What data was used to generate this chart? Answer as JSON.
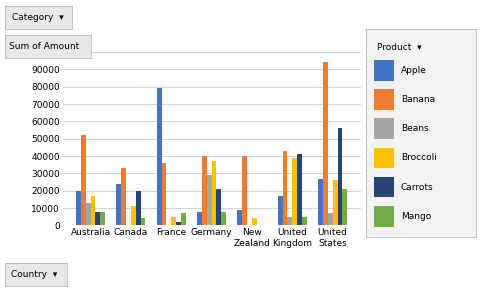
{
  "countries": [
    "Australia",
    "Canada",
    "France",
    "Germany",
    "New\nZealand",
    "United\nKingdom",
    "United\nStates"
  ],
  "products": [
    "Apple",
    "Banana",
    "Beans",
    "Broccoli",
    "Carrots",
    "Mango"
  ],
  "bar_colors": {
    "Apple": "#4472C4",
    "Banana": "#ED7D31",
    "Beans": "#A5A5A5",
    "Broccoli": "#FFC000",
    "Carrots": "#264478",
    "Mango": "#70AD47"
  },
  "data": {
    "Australia": {
      "Apple": 20000,
      "Banana": 52000,
      "Beans": 13000,
      "Broccoli": 17000,
      "Carrots": 8000,
      "Mango": 8000
    },
    "Canada": {
      "Apple": 24000,
      "Banana": 33000,
      "Beans": 0,
      "Broccoli": 11000,
      "Carrots": 20000,
      "Mango": 4000
    },
    "France": {
      "Apple": 79000,
      "Banana": 36000,
      "Beans": 0,
      "Broccoli": 5000,
      "Carrots": 2000,
      "Mango": 7000
    },
    "Germany": {
      "Apple": 8000,
      "Banana": 40000,
      "Beans": 29000,
      "Broccoli": 37000,
      "Carrots": 21000,
      "Mango": 8000
    },
    "New\nZealand": {
      "Apple": 9000,
      "Banana": 40000,
      "Beans": 0,
      "Broccoli": 4000,
      "Carrots": 0,
      "Mango": 0
    },
    "United\nKingdom": {
      "Apple": 17000,
      "Banana": 43000,
      "Beans": 5000,
      "Broccoli": 39000,
      "Carrots": 41000,
      "Mango": 5000
    },
    "United\nStates": {
      "Apple": 27000,
      "Banana": 94000,
      "Beans": 7000,
      "Broccoli": 26000,
      "Carrots": 56000,
      "Mango": 21000
    }
  },
  "legend_title": "Product",
  "ylim": [
    0,
    100000
  ],
  "yticks": [
    0,
    10000,
    20000,
    30000,
    40000,
    50000,
    60000,
    70000,
    80000,
    90000,
    100000
  ],
  "background_color": "#FFFFFF",
  "plot_bg": "#FFFFFF",
  "grid_color": "#CCCCCC"
}
